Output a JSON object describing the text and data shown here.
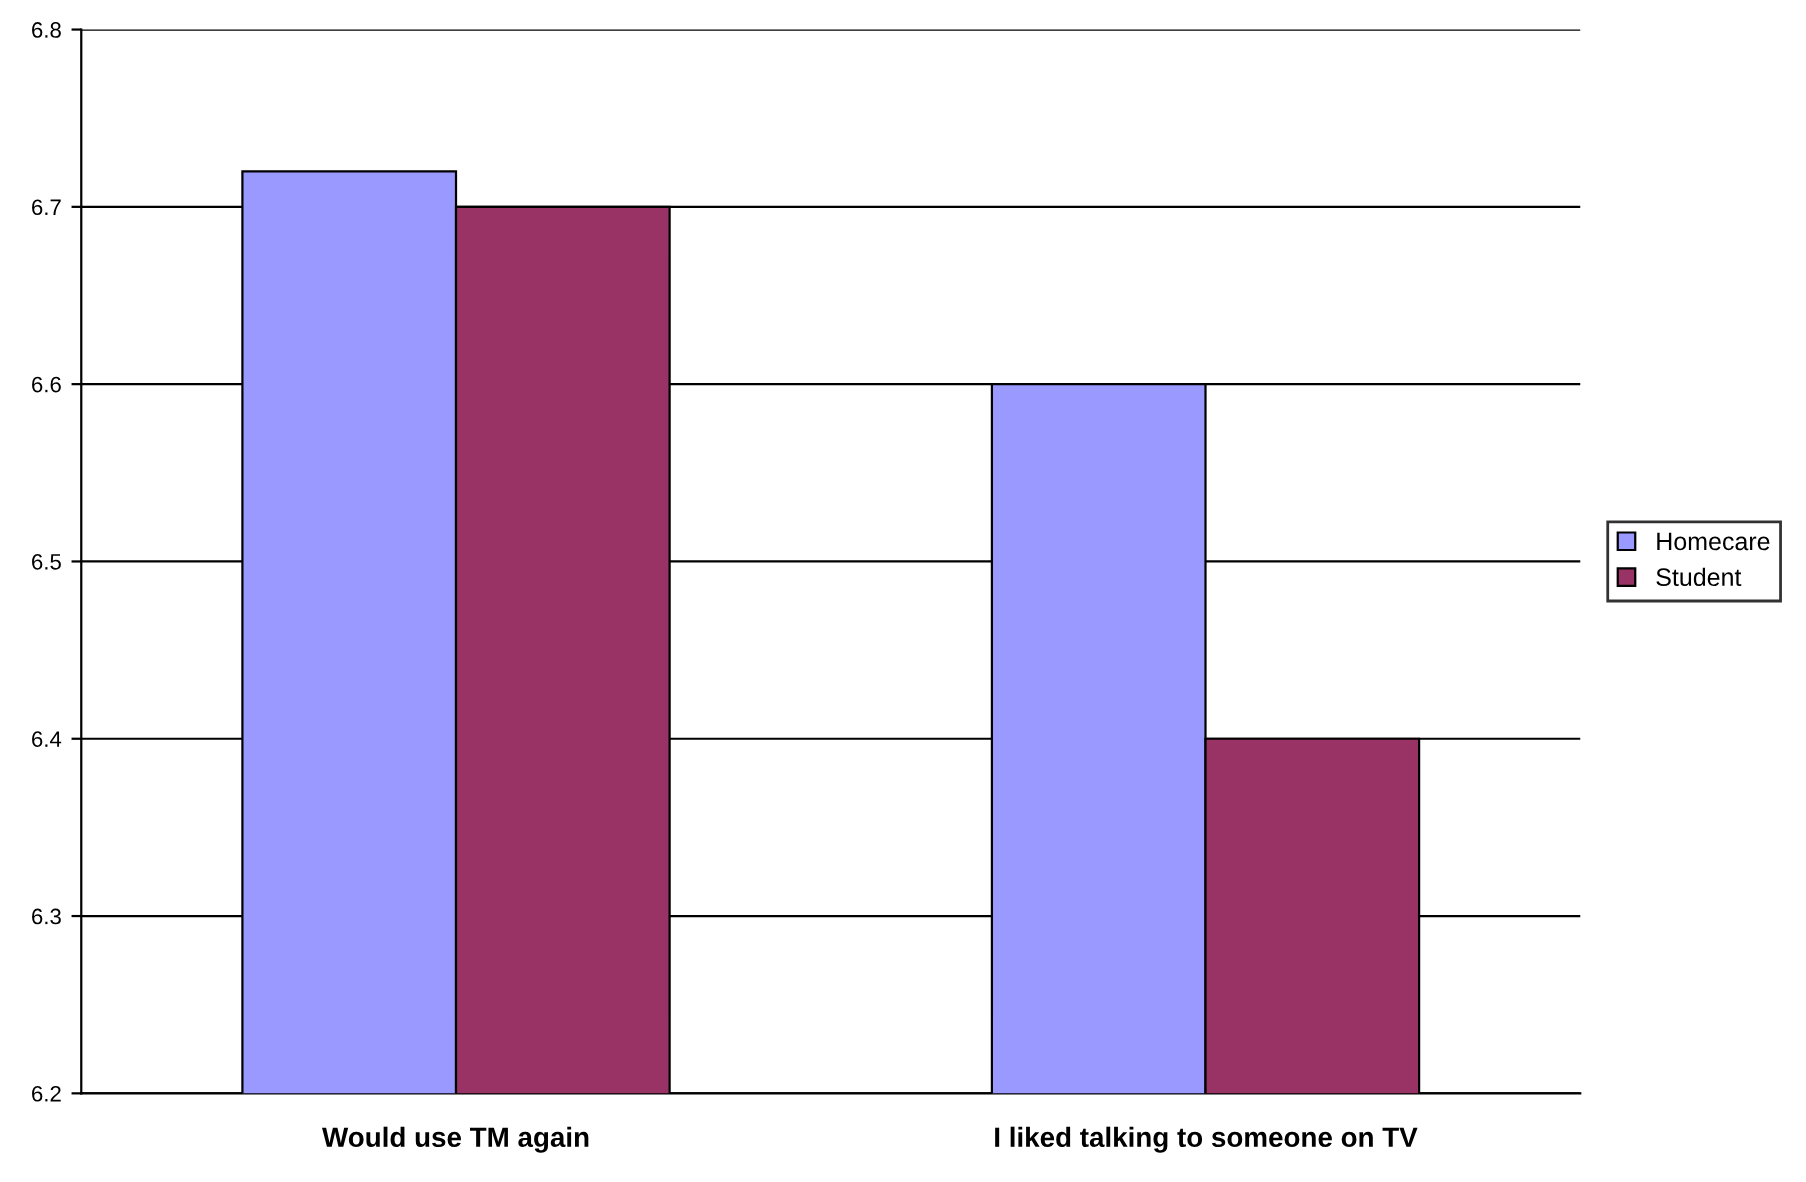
{
  "chart_data": {
    "type": "bar",
    "categories": [
      "Would use TM again",
      "I liked talking to someone on TV"
    ],
    "series": [
      {
        "name": "Homecare",
        "color": "#9999ff",
        "values": [
          6.72,
          6.6
        ]
      },
      {
        "name": "Student",
        "color": "#993366",
        "values": [
          6.7,
          6.4
        ]
      }
    ],
    "ylim": [
      6.2,
      6.8
    ],
    "yticks": [
      6.2,
      6.3,
      6.4,
      6.5,
      6.6,
      6.7,
      6.8
    ],
    "grid": "y",
    "legend": "right"
  }
}
